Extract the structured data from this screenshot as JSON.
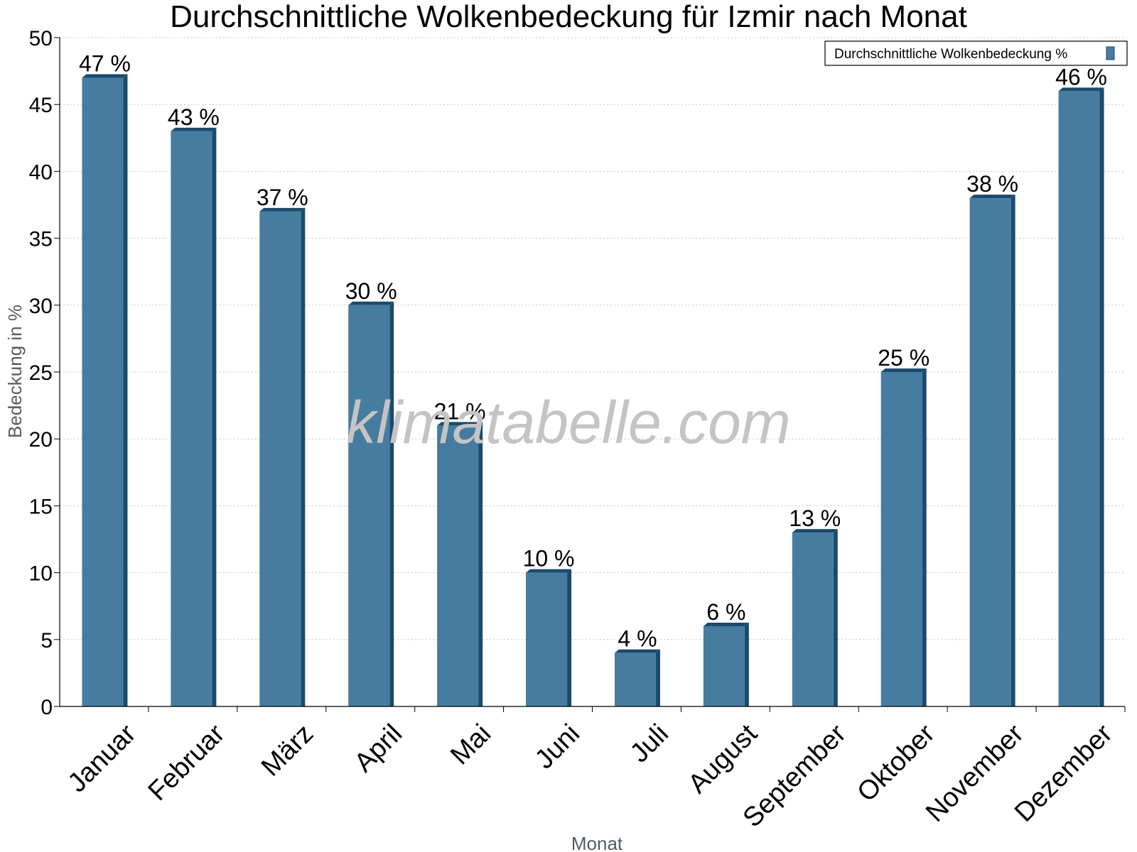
{
  "chart_data": {
    "type": "bar",
    "title": "Durchschnittliche Wolkenbedeckung für Izmir nach Monat",
    "xlabel": "Monat",
    "ylabel": "Bedeckung in %",
    "categories": [
      "Januar",
      "Februar",
      "März",
      "April",
      "Mai",
      "Juni",
      "Juli",
      "August",
      "September",
      "Oktober",
      "November",
      "Dezember"
    ],
    "series": [
      {
        "name": "Durchschnittliche Wolkenbedeckung %",
        "values": [
          47,
          43,
          37,
          30,
          21,
          10,
          4,
          6,
          13,
          25,
          38,
          46
        ],
        "data_labels": [
          "47 %",
          "43 %",
          "37 %",
          "30 %",
          "21 %",
          "10 %",
          "4 %",
          "6 %",
          "13 %",
          "25 %",
          "38 %",
          "46 %"
        ],
        "color": "#467c9f",
        "edge_color": "#1b4b6c"
      }
    ],
    "ylim": [
      0,
      50
    ],
    "yticks": [
      0,
      5,
      10,
      15,
      20,
      25,
      30,
      35,
      40,
      45,
      50
    ],
    "grid": true,
    "legend_position": "top-right",
    "watermark": "klimatabelle.com"
  }
}
